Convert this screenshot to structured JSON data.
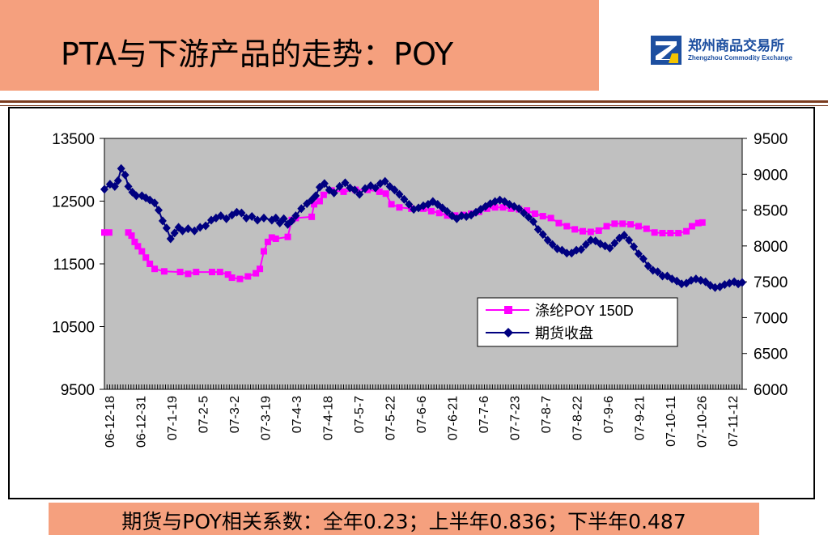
{
  "header": {
    "title": "PTA与下游产品的走势：POY",
    "logo_name": "郑州商品交易所",
    "logo_sub": "Zhengzhou Commodity Exchange"
  },
  "footer": {
    "note": "期货与POY相关系数：全年0.23；上半年0.836；下半年0.487"
  },
  "colors": {
    "title_bg": "#f5a07e",
    "plot_bg": "#c0c0c0",
    "poy_series": "#ff00ff",
    "futures_series": "#000080",
    "logo_blue": "#1d4fa0"
  },
  "chart_data": {
    "type": "line",
    "title": "",
    "xlabel": "",
    "ylabel": "",
    "ylim": [
      9500,
      13500
    ],
    "y2lim": [
      6000,
      9500
    ],
    "yticks": [
      "13500",
      "12500",
      "11500",
      "10500",
      "9500"
    ],
    "y2ticks": [
      "9500",
      "9000",
      "8500",
      "8000",
      "7500",
      "7000",
      "6500",
      "6000"
    ],
    "x_tick_labels": [
      "06-12-18",
      "06-12-31",
      "07-1-19",
      "07-2-5",
      "07-3-2",
      "07-3-19",
      "07-4-3",
      "07-4-18",
      "07-5-7",
      "07-5-22",
      "07-6-6",
      "07-6-21",
      "07-7-6",
      "07-7-23",
      "07-8-7",
      "07-8-22",
      "07-9-6",
      "07-9-21",
      "07-10-11",
      "07-10-26",
      "07-11-12"
    ],
    "legend_position": "lower-right",
    "grid": false,
    "series": [
      {
        "name": "涤纶POY 150D",
        "axis": "left",
        "marker": "square",
        "points": [
          [
            0,
            12000
          ],
          [
            0.6,
            12000
          ],
          [
            3,
            12000
          ],
          [
            3.4,
            11950
          ],
          [
            3.8,
            11850
          ],
          [
            4.2,
            11780
          ],
          [
            4.7,
            11700
          ],
          [
            5.2,
            11600
          ],
          [
            5.7,
            11500
          ],
          [
            6.3,
            11420
          ],
          [
            7.5,
            11380
          ],
          [
            9.5,
            11370
          ],
          [
            10.5,
            11340
          ],
          [
            11.5,
            11370
          ],
          [
            13.5,
            11370
          ],
          [
            14.5,
            11370
          ],
          [
            15.5,
            11330
          ],
          [
            16,
            11280
          ],
          [
            17,
            11260
          ],
          [
            18,
            11300
          ],
          [
            19,
            11350
          ],
          [
            19.5,
            11420
          ],
          [
            20,
            11700
          ],
          [
            20.5,
            11850
          ],
          [
            21,
            11920
          ],
          [
            21.5,
            11900
          ],
          [
            23,
            11930
          ],
          [
            23.5,
            12200
          ],
          [
            24,
            12230
          ],
          [
            26,
            12250
          ],
          [
            26.3,
            12450
          ],
          [
            27,
            12500
          ],
          [
            27.5,
            12600
          ],
          [
            28.5,
            12670
          ],
          [
            30,
            12650
          ],
          [
            31.5,
            12680
          ],
          [
            33,
            12680
          ],
          [
            34.5,
            12650
          ],
          [
            35.3,
            12620
          ],
          [
            36,
            12450
          ],
          [
            37,
            12400
          ],
          [
            38.5,
            12380
          ],
          [
            40,
            12380
          ],
          [
            41,
            12340
          ],
          [
            42,
            12310
          ],
          [
            43,
            12270
          ],
          [
            44,
            12270
          ],
          [
            45,
            12280
          ],
          [
            46,
            12300
          ],
          [
            47,
            12330
          ],
          [
            48,
            12380
          ],
          [
            49,
            12400
          ],
          [
            50,
            12400
          ],
          [
            51,
            12380
          ],
          [
            52,
            12370
          ],
          [
            53,
            12350
          ],
          [
            54,
            12300
          ],
          [
            55,
            12260
          ],
          [
            56,
            12230
          ],
          [
            57,
            12150
          ],
          [
            58,
            12100
          ],
          [
            59,
            12050
          ],
          [
            60,
            12020
          ],
          [
            61,
            12010
          ],
          [
            62,
            12030
          ],
          [
            63,
            12100
          ],
          [
            64,
            12140
          ],
          [
            65,
            12140
          ],
          [
            66,
            12130
          ],
          [
            67,
            12100
          ],
          [
            68,
            12060
          ],
          [
            69,
            12000
          ],
          [
            70,
            11990
          ],
          [
            71,
            11990
          ],
          [
            72,
            11990
          ],
          [
            73,
            12020
          ],
          [
            73.7,
            12100
          ],
          [
            74.5,
            12150
          ],
          [
            75,
            12160
          ]
        ]
      },
      {
        "name": "期货收盘",
        "axis": "right",
        "marker": "diamond",
        "points": [
          [
            0,
            8790
          ],
          [
            0.7,
            8860
          ],
          [
            1.3,
            8830
          ],
          [
            1.7,
            8910
          ],
          [
            2.1,
            9080
          ],
          [
            2.6,
            8990
          ],
          [
            3,
            8830
          ],
          [
            3.5,
            8750
          ],
          [
            4,
            8700
          ],
          [
            4.7,
            8700
          ],
          [
            5.2,
            8670
          ],
          [
            5.7,
            8640
          ],
          [
            6.3,
            8600
          ],
          [
            6.8,
            8500
          ],
          [
            7.3,
            8350
          ],
          [
            7.8,
            8250
          ],
          [
            8.3,
            8100
          ],
          [
            8.8,
            8180
          ],
          [
            9.3,
            8260
          ],
          [
            9.8,
            8210
          ],
          [
            10.5,
            8240
          ],
          [
            11.3,
            8210
          ],
          [
            12,
            8260
          ],
          [
            12.7,
            8280
          ],
          [
            13.4,
            8360
          ],
          [
            14,
            8390
          ],
          [
            14.6,
            8420
          ],
          [
            15.3,
            8380
          ],
          [
            16,
            8430
          ],
          [
            16.6,
            8470
          ],
          [
            17.2,
            8460
          ],
          [
            17.8,
            8390
          ],
          [
            18.5,
            8410
          ],
          [
            19.2,
            8360
          ],
          [
            20,
            8390
          ],
          [
            21,
            8360
          ],
          [
            21.5,
            8390
          ],
          [
            22,
            8320
          ],
          [
            22.5,
            8380
          ],
          [
            23,
            8300
          ],
          [
            23.5,
            8350
          ],
          [
            24,
            8420
          ],
          [
            24.7,
            8520
          ],
          [
            25.4,
            8590
          ],
          [
            26,
            8640
          ],
          [
            26.5,
            8700
          ],
          [
            27,
            8820
          ],
          [
            27.6,
            8870
          ],
          [
            28.2,
            8780
          ],
          [
            28.8,
            8740
          ],
          [
            29.5,
            8830
          ],
          [
            30.2,
            8880
          ],
          [
            30.8,
            8810
          ],
          [
            31.4,
            8780
          ],
          [
            32,
            8720
          ],
          [
            32.7,
            8800
          ],
          [
            33.4,
            8840
          ],
          [
            34,
            8810
          ],
          [
            34.6,
            8870
          ],
          [
            35.2,
            8900
          ],
          [
            35.8,
            8830
          ],
          [
            36.4,
            8780
          ],
          [
            37,
            8720
          ],
          [
            37.6,
            8650
          ],
          [
            38.2,
            8580
          ],
          [
            38.8,
            8510
          ],
          [
            39.4,
            8530
          ],
          [
            40,
            8560
          ],
          [
            40.6,
            8580
          ],
          [
            41.2,
            8620
          ],
          [
            41.8,
            8580
          ],
          [
            42.4,
            8530
          ],
          [
            43,
            8480
          ],
          [
            43.6,
            8420
          ],
          [
            44.2,
            8380
          ],
          [
            44.8,
            8420
          ],
          [
            45.4,
            8410
          ],
          [
            46,
            8430
          ],
          [
            46.6,
            8470
          ],
          [
            47.2,
            8510
          ],
          [
            47.8,
            8550
          ],
          [
            48.4,
            8590
          ],
          [
            49,
            8620
          ],
          [
            49.6,
            8640
          ],
          [
            50.2,
            8620
          ],
          [
            50.8,
            8580
          ],
          [
            51.4,
            8550
          ],
          [
            52,
            8520
          ],
          [
            52.6,
            8460
          ],
          [
            53.2,
            8400
          ],
          [
            53.8,
            8340
          ],
          [
            54.4,
            8230
          ],
          [
            55,
            8160
          ],
          [
            55.6,
            8080
          ],
          [
            56.2,
            8020
          ],
          [
            56.8,
            7960
          ],
          [
            57.4,
            7940
          ],
          [
            58,
            7900
          ],
          [
            58.6,
            7900
          ],
          [
            59.2,
            7940
          ],
          [
            59.8,
            7950
          ],
          [
            60.4,
            8020
          ],
          [
            61,
            8080
          ],
          [
            61.6,
            8070
          ],
          [
            62.2,
            8030
          ],
          [
            62.8,
            8000
          ],
          [
            63.4,
            7970
          ],
          [
            64,
            8040
          ],
          [
            64.6,
            8110
          ],
          [
            65.2,
            8150
          ],
          [
            65.8,
            8080
          ],
          [
            66.4,
            7990
          ],
          [
            67,
            7890
          ],
          [
            67.6,
            7820
          ],
          [
            68.2,
            7720
          ],
          [
            68.8,
            7660
          ],
          [
            69.4,
            7640
          ],
          [
            70,
            7580
          ],
          [
            70.6,
            7580
          ],
          [
            71.2,
            7540
          ],
          [
            71.8,
            7510
          ],
          [
            72.4,
            7470
          ],
          [
            73,
            7480
          ],
          [
            73.6,
            7520
          ],
          [
            74.2,
            7540
          ],
          [
            74.8,
            7520
          ],
          [
            75.4,
            7500
          ],
          [
            76,
            7450
          ],
          [
            76.6,
            7420
          ],
          [
            77.2,
            7430
          ],
          [
            77.8,
            7460
          ],
          [
            78.4,
            7480
          ],
          [
            79,
            7500
          ],
          [
            79.5,
            7470
          ],
          [
            80,
            7490
          ]
        ]
      }
    ]
  }
}
